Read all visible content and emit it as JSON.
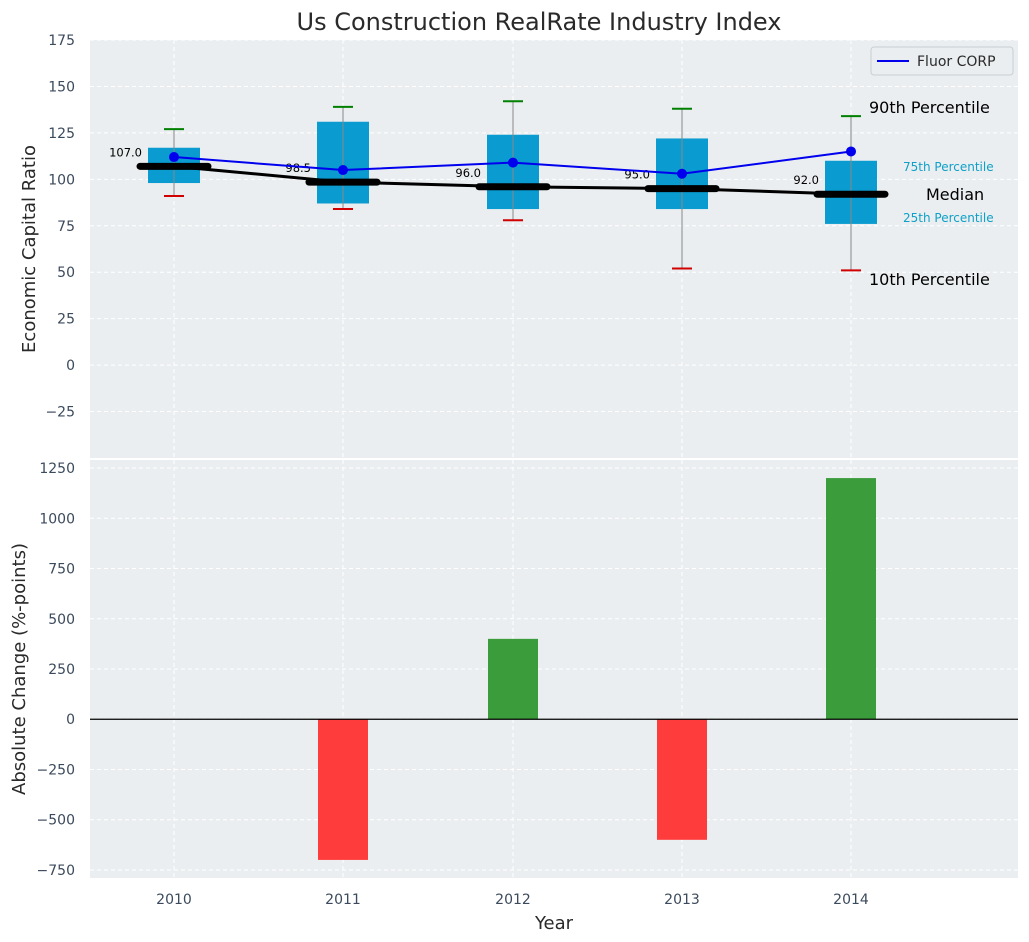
{
  "chart_data": [
    {
      "type": "box",
      "title": "Us Construction RealRate Industry Index",
      "ylabel": "Economic Capital Ratio",
      "ylim": [
        -50,
        175
      ],
      "yticks": [
        -25,
        0,
        25,
        50,
        75,
        100,
        125,
        150,
        175
      ],
      "categories": [
        "2010",
        "2011",
        "2012",
        "2013",
        "2014"
      ],
      "grid": true,
      "legend_position": "top-right",
      "boxes": [
        {
          "year": "2010",
          "p10": 91,
          "p25": 98,
          "median": 107.0,
          "p75": 117,
          "p90": 127
        },
        {
          "year": "2011",
          "p10": 84,
          "p25": 87,
          "median": 98.5,
          "p75": 131,
          "p90": 139
        },
        {
          "year": "2012",
          "p10": 78,
          "p25": 84,
          "median": 96.0,
          "p75": 124,
          "p90": 142
        },
        {
          "year": "2013",
          "p10": 52,
          "p25": 84,
          "median": 95.0,
          "p75": 122,
          "p90": 138
        },
        {
          "year": "2014",
          "p10": 51,
          "p25": 76,
          "median": 92.0,
          "p75": 110,
          "p90": 134
        }
      ],
      "median_labels": [
        "107.0",
        "98.5",
        "96.0",
        "95.0",
        "92.0"
      ],
      "series": [
        {
          "name": "Fluor CORP",
          "color": "#0000ee",
          "values": [
            112,
            105,
            109,
            103,
            115
          ]
        }
      ],
      "annotations": {
        "p90": "90th Percentile",
        "p75": "75th Percentile",
        "median": "Median",
        "p25": "25th Percentile",
        "p10": "10th Percentile"
      }
    },
    {
      "type": "bar",
      "xlabel": "Year",
      "ylabel": "Absolute Change (%-points)",
      "ylim": [
        -790,
        1290
      ],
      "yticks": [
        -750,
        -500,
        -250,
        0,
        250,
        500,
        750,
        1000,
        1250
      ],
      "categories": [
        "2010",
        "2011",
        "2012",
        "2013",
        "2014"
      ],
      "values": [
        0,
        -700,
        400,
        -600,
        1200
      ],
      "grid": true
    }
  ],
  "colors": {
    "plot_bg": "#eaeef0",
    "box_fill": "#0a9bd0",
    "median": "#000000",
    "p90_cap": "#008000",
    "p10_cap": "#d00000",
    "whisker": "#888888",
    "bar_positive": "#3a9c3a",
    "bar_negative": "#ff3c3c"
  }
}
